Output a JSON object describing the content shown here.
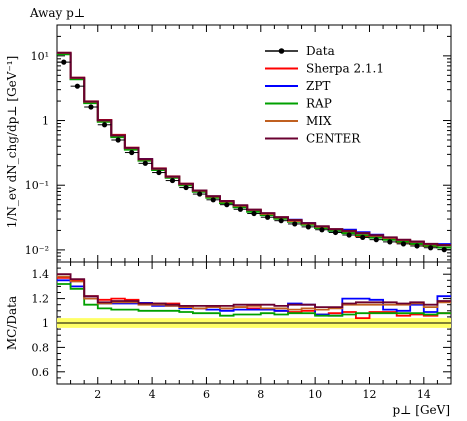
{
  "chart_data": [
    {
      "type": "line",
      "panel": "main",
      "title": "Away p⊥",
      "xlabel": "",
      "ylabel": "1/N_ev dN_chg/dp⊥ [GeV⁻¹]",
      "log_y": true,
      "xlim": [
        0.5,
        15.0
      ],
      "ylim": [
        0.0065,
        30
      ],
      "x_edges": [
        0.5,
        1.0,
        1.5,
        2.0,
        2.5,
        3.0,
        3.5,
        4.0,
        4.5,
        5.0,
        5.5,
        6.0,
        6.5,
        7.0,
        7.5,
        8.0,
        8.5,
        9.0,
        9.5,
        10.0,
        10.5,
        11.0,
        11.5,
        12.0,
        12.5,
        13.0,
        13.5,
        14.0,
        14.5,
        15.0
      ],
      "yticks": [
        {
          "value": 0.01,
          "label": "10⁻²"
        },
        {
          "value": 0.1,
          "label": "10⁻¹"
        },
        {
          "value": 1,
          "label": "1"
        },
        {
          "value": 10,
          "label": "10¹"
        }
      ],
      "legend_position": "top-right",
      "data": {
        "name": "Data",
        "x": [
          0.75,
          1.25,
          1.75,
          2.25,
          2.75,
          3.25,
          3.75,
          4.25,
          4.75,
          5.25,
          5.75,
          6.25,
          6.75,
          7.25,
          7.75,
          8.25,
          8.75,
          9.25,
          9.75,
          10.25,
          10.75,
          11.25,
          11.75,
          12.25,
          12.75,
          13.25,
          13.75,
          14.25,
          14.75
        ],
        "y": [
          8.0,
          3.4,
          1.62,
          0.86,
          0.5,
          0.32,
          0.218,
          0.157,
          0.118,
          0.092,
          0.073,
          0.0595,
          0.05,
          0.0425,
          0.0365,
          0.032,
          0.0283,
          0.0252,
          0.0227,
          0.0205,
          0.0186,
          0.017,
          0.0156,
          0.0144,
          0.0133,
          0.0124,
          0.0115,
          0.0108,
          0.0101
        ]
      },
      "series": [
        {
          "name": "Sherpa 2.1.1",
          "color": "#ff0000",
          "y": [
            11.0,
            4.6,
            1.98,
            1.02,
            0.6,
            0.38,
            0.254,
            0.182,
            0.137,
            0.105,
            0.082,
            0.067,
            0.056,
            0.048,
            0.041,
            0.036,
            0.031,
            0.0275,
            0.025,
            0.022,
            0.02,
            0.0185,
            0.0163,
            0.0157,
            0.0145,
            0.0131,
            0.0123,
            0.0115,
            0.0109
          ]
        },
        {
          "name": "ZPT",
          "color": "#0000ff",
          "y": [
            10.8,
            4.4,
            1.95,
            1.0,
            0.58,
            0.37,
            0.254,
            0.179,
            0.135,
            0.103,
            0.082,
            0.066,
            0.055,
            0.047,
            0.0405,
            0.0355,
            0.031,
            0.0292,
            0.026,
            0.022,
            0.0198,
            0.0205,
            0.0188,
            0.0172,
            0.0148,
            0.0137,
            0.0132,
            0.0118,
            0.0123
          ]
        },
        {
          "name": "RAP",
          "color": "#00a000",
          "y": [
            10.6,
            4.35,
            1.86,
            0.96,
            0.555,
            0.355,
            0.24,
            0.172,
            0.13,
            0.1,
            0.079,
            0.064,
            0.053,
            0.0455,
            0.039,
            0.0345,
            0.0303,
            0.0272,
            0.0245,
            0.0218,
            0.0198,
            0.0182,
            0.0168,
            0.0155,
            0.0144,
            0.0134,
            0.0124,
            0.0116,
            0.0109
          ]
        },
        {
          "name": "MIX",
          "color": "#c06020",
          "y": [
            11.1,
            4.55,
            1.95,
            1.0,
            0.59,
            0.375,
            0.251,
            0.18,
            0.135,
            0.104,
            0.082,
            0.067,
            0.056,
            0.048,
            0.0415,
            0.036,
            0.0318,
            0.028,
            0.0255,
            0.0228,
            0.0208,
            0.0195,
            0.018,
            0.0165,
            0.0153,
            0.0142,
            0.0133,
            0.0122,
            0.0118
          ]
        },
        {
          "name": "CENTER",
          "color": "#6a0030",
          "y": [
            11.2,
            4.6,
            1.97,
            1.01,
            0.59,
            0.377,
            0.253,
            0.181,
            0.136,
            0.105,
            0.083,
            0.068,
            0.057,
            0.049,
            0.042,
            0.037,
            0.0322,
            0.029,
            0.026,
            0.0232,
            0.021,
            0.0197,
            0.0182,
            0.0169,
            0.0156,
            0.0144,
            0.0135,
            0.0124,
            0.0119
          ]
        }
      ]
    },
    {
      "type": "line",
      "panel": "ratio",
      "title": "",
      "xlabel": "p⊥ [GeV]",
      "ylabel": "MC/Data",
      "xlim": [
        0.5,
        15.0
      ],
      "ylim": [
        0.5,
        1.5
      ],
      "x_edges": [
        0.5,
        1.0,
        1.5,
        2.0,
        2.5,
        3.0,
        3.5,
        4.0,
        4.5,
        5.0,
        5.5,
        6.0,
        6.5,
        7.0,
        7.5,
        8.0,
        8.5,
        9.0,
        9.5,
        10.0,
        10.5,
        11.0,
        11.5,
        12.0,
        12.5,
        13.0,
        13.5,
        14.0,
        14.5,
        15.0
      ],
      "xticks": [
        2,
        4,
        6,
        8,
        10,
        12,
        14
      ],
      "yticks": [
        0.6,
        0.8,
        1.0,
        1.2,
        1.4
      ],
      "ytick_labels": [
        "0.6",
        "0.8",
        "1",
        "1.2",
        "1.4"
      ],
      "reference_line": 1.0,
      "uncertainty_band": [
        0.96,
        1.04
      ],
      "band_color": "#ffff66",
      "series": [
        {
          "name": "Sherpa 2.1.1",
          "color": "#ff0000",
          "y": [
            1.37,
            1.35,
            1.22,
            1.19,
            1.2,
            1.19,
            1.165,
            1.16,
            1.16,
            1.14,
            1.12,
            1.13,
            1.12,
            1.13,
            1.12,
            1.12,
            1.1,
            1.09,
            1.1,
            1.07,
            1.08,
            1.09,
            1.04,
            1.09,
            1.09,
            1.06,
            1.07,
            1.06,
            1.08
          ]
        },
        {
          "name": "ZPT",
          "color": "#0000ff",
          "y": [
            1.35,
            1.3,
            1.2,
            1.16,
            1.16,
            1.16,
            1.165,
            1.14,
            1.14,
            1.12,
            1.12,
            1.11,
            1.1,
            1.11,
            1.11,
            1.11,
            1.1,
            1.16,
            1.15,
            1.07,
            1.06,
            1.2,
            1.2,
            1.19,
            1.11,
            1.1,
            1.15,
            1.09,
            1.22
          ]
        },
        {
          "name": "RAP",
          "color": "#00a000",
          "y": [
            1.32,
            1.28,
            1.15,
            1.12,
            1.11,
            1.11,
            1.1,
            1.1,
            1.1,
            1.09,
            1.08,
            1.08,
            1.06,
            1.07,
            1.07,
            1.08,
            1.07,
            1.08,
            1.08,
            1.06,
            1.06,
            1.07,
            1.08,
            1.08,
            1.08,
            1.08,
            1.08,
            1.07,
            1.08
          ]
        },
        {
          "name": "MIX",
          "color": "#c06020",
          "y": [
            1.38,
            1.34,
            1.2,
            1.16,
            1.17,
            1.17,
            1.15,
            1.15,
            1.14,
            1.13,
            1.12,
            1.13,
            1.12,
            1.13,
            1.14,
            1.12,
            1.12,
            1.11,
            1.12,
            1.11,
            1.12,
            1.15,
            1.15,
            1.15,
            1.15,
            1.15,
            1.16,
            1.13,
            1.17
          ]
        },
        {
          "name": "CENTER",
          "color": "#6a0030",
          "y": [
            1.4,
            1.36,
            1.22,
            1.17,
            1.18,
            1.18,
            1.16,
            1.16,
            1.15,
            1.14,
            1.14,
            1.14,
            1.14,
            1.15,
            1.15,
            1.15,
            1.14,
            1.15,
            1.15,
            1.13,
            1.13,
            1.16,
            1.17,
            1.17,
            1.17,
            1.16,
            1.17,
            1.15,
            1.18
          ]
        }
      ]
    }
  ]
}
